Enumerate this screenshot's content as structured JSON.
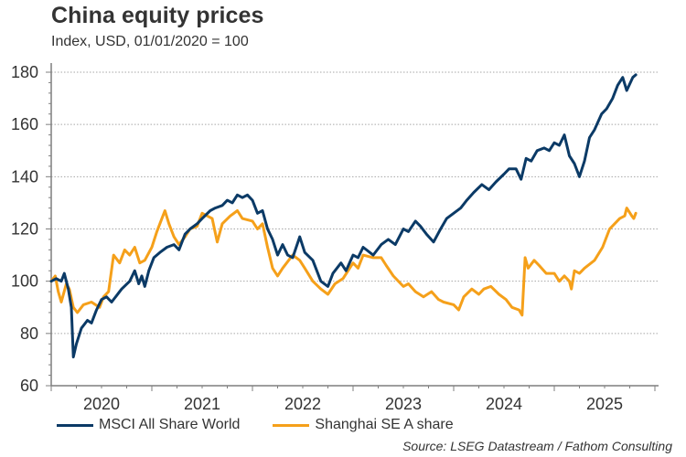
{
  "title": "China equity prices",
  "subtitle": "Index, USD, 01/01/2020 = 100",
  "source": "Source: LSEG Datastream / Fathom Consulting",
  "colors": {
    "msci": "#0b3a66",
    "shanghai": "#f5a01a",
    "axis": "#7f7f7f",
    "grid": "#a6a6a6"
  },
  "legend": [
    {
      "label": "MSCI All Share World",
      "color": "#0b3a66"
    },
    {
      "label": "Shanghai SE A share",
      "color": "#f5a01a"
    }
  ],
  "chart_data": {
    "type": "line",
    "title": "China equity prices",
    "subtitle": "Index, USD, 01/01/2020 = 100",
    "xlabel": "",
    "ylabel": "",
    "xlim": [
      2020.0,
      2025.9
    ],
    "ylim": [
      60,
      180
    ],
    "yticks": [
      60,
      80,
      100,
      120,
      140,
      160,
      180
    ],
    "xtick_labels": [
      "2020",
      "2021",
      "2022",
      "2023",
      "2024",
      "2025"
    ],
    "grid": "horizontal dotted",
    "legend_position": "bottom",
    "series": [
      {
        "name": "MSCI All Share World",
        "x": [
          2020.0,
          2020.05,
          2020.1,
          2020.13,
          2020.17,
          2020.2,
          2020.22,
          2020.25,
          2020.3,
          2020.36,
          2020.4,
          2020.45,
          2020.5,
          2020.55,
          2020.6,
          2020.7,
          2020.78,
          2020.83,
          2020.87,
          2020.9,
          2020.93,
          2020.97,
          2021.02,
          2021.08,
          2021.15,
          2021.22,
          2021.27,
          2021.33,
          2021.38,
          2021.45,
          2021.5,
          2021.58,
          2021.63,
          2021.7,
          2021.75,
          2021.8,
          2021.85,
          2021.9,
          2021.95,
          2022.0,
          2022.05,
          2022.1,
          2022.15,
          2022.2,
          2022.25,
          2022.3,
          2022.35,
          2022.4,
          2022.47,
          2022.52,
          2022.6,
          2022.68,
          2022.75,
          2022.8,
          2022.88,
          2022.93,
          2023.0,
          2023.05,
          2023.1,
          2023.2,
          2023.28,
          2023.35,
          2023.42,
          2023.5,
          2023.55,
          2023.62,
          2023.67,
          2023.73,
          2023.8,
          2023.87,
          2023.93,
          2024.0,
          2024.07,
          2024.13,
          2024.2,
          2024.28,
          2024.35,
          2024.42,
          2024.5,
          2024.55,
          2024.62,
          2024.67,
          2024.72,
          2024.77,
          2024.83,
          2024.9,
          2024.95,
          2025.0,
          2025.05,
          2025.1,
          2025.15,
          2025.2,
          2025.25,
          2025.3,
          2025.35,
          2025.4,
          2025.47,
          2025.52,
          2025.58,
          2025.63,
          2025.68,
          2025.72,
          2025.78,
          2025.81
        ],
        "values": [
          100,
          101,
          100,
          103,
          97,
          90,
          71,
          76,
          82,
          85,
          84,
          89,
          93,
          94,
          92,
          97,
          100,
          104,
          99,
          102,
          98,
          104,
          109,
          111,
          113,
          114,
          112,
          118,
          120,
          122,
          124,
          127,
          128,
          129,
          131,
          130,
          133,
          132,
          133,
          131,
          126,
          127,
          120,
          116,
          110,
          114,
          110,
          109,
          117,
          111,
          108,
          100,
          98,
          103,
          107,
          104,
          110,
          109,
          113,
          110,
          114,
          116,
          114,
          120,
          119,
          123,
          121,
          118,
          115,
          120,
          124,
          126,
          128,
          131,
          134,
          137,
          135,
          138,
          141,
          143,
          143,
          139,
          147,
          146,
          150,
          151,
          150,
          153,
          152,
          156,
          148,
          145,
          140,
          146,
          155,
          158,
          164,
          166,
          170,
          175,
          178,
          173,
          178,
          179
        ]
      },
      {
        "name": "Shanghai SE A share",
        "x": [
          2020.0,
          2020.04,
          2020.07,
          2020.1,
          2020.15,
          2020.18,
          2020.22,
          2020.26,
          2020.32,
          2020.4,
          2020.48,
          2020.52,
          2020.57,
          2020.62,
          2020.68,
          2020.73,
          2020.78,
          2020.83,
          2020.88,
          2020.93,
          2021.0,
          2021.05,
          2021.1,
          2021.13,
          2021.17,
          2021.22,
          2021.27,
          2021.33,
          2021.38,
          2021.45,
          2021.5,
          2021.55,
          2021.6,
          2021.65,
          2021.7,
          2021.78,
          2021.85,
          2021.9,
          2022.0,
          2022.05,
          2022.1,
          2022.15,
          2022.2,
          2022.25,
          2022.3,
          2022.4,
          2022.47,
          2022.52,
          2022.6,
          2022.68,
          2022.75,
          2022.82,
          2022.9,
          2023.0,
          2023.05,
          2023.1,
          2023.2,
          2023.28,
          2023.33,
          2023.4,
          2023.5,
          2023.55,
          2023.62,
          2023.7,
          2023.78,
          2023.85,
          2023.9,
          2024.0,
          2024.05,
          2024.1,
          2024.18,
          2024.25,
          2024.3,
          2024.37,
          2024.45,
          2024.52,
          2024.58,
          2024.65,
          2024.68,
          2024.71,
          2024.74,
          2024.8,
          2024.85,
          2024.92,
          2025.0,
          2025.05,
          2025.1,
          2025.15,
          2025.17,
          2025.2,
          2025.25,
          2025.3,
          2025.4,
          2025.48,
          2025.55,
          2025.6,
          2025.65,
          2025.7,
          2025.72,
          2025.77,
          2025.79,
          2025.81
        ],
        "values": [
          100,
          102,
          96,
          92,
          99,
          97,
          90,
          88,
          91,
          92,
          90,
          94,
          96,
          110,
          107,
          112,
          110,
          113,
          107,
          108,
          113,
          119,
          124,
          127,
          122,
          117,
          114,
          117,
          120,
          121,
          126,
          125,
          124,
          115,
          122,
          125,
          127,
          124,
          123,
          120,
          122,
          113,
          105,
          102,
          105,
          110,
          108,
          105,
          100,
          97,
          95,
          99,
          101,
          107,
          105,
          110,
          109,
          109,
          106,
          102,
          98,
          99,
          96,
          94,
          96,
          93,
          92,
          91,
          89,
          94,
          97,
          95,
          97,
          98,
          95,
          93,
          90,
          89,
          87,
          109,
          105,
          108,
          106,
          103,
          103,
          100,
          102,
          100,
          97,
          104,
          103,
          105,
          108,
          113,
          120,
          122,
          124,
          125,
          128,
          125,
          124,
          126
        ]
      }
    ]
  }
}
